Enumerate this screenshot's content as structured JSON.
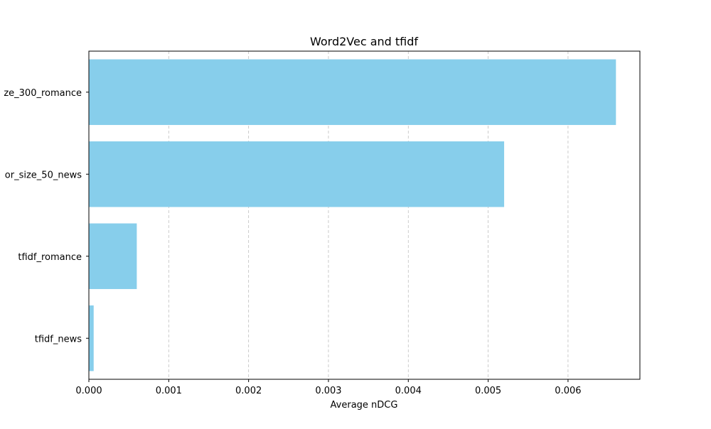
{
  "chart_data": {
    "type": "bar",
    "orientation": "horizontal",
    "title": "Word2Vec and tfidf",
    "xlabel": "Average nDCG",
    "ylabel": "",
    "categories": [
      "tfidf_news",
      "tfidf_romance",
      "or_size_50_news",
      "ze_300_romance"
    ],
    "values": [
      6e-05,
      0.0006,
      0.0052,
      0.0066
    ],
    "xlim": [
      0,
      0.0069
    ],
    "xticks": [
      0,
      0.001,
      0.002,
      0.003,
      0.004,
      0.005,
      0.006
    ],
    "xtick_labels": [
      "0.000",
      "0.001",
      "0.002",
      "0.003",
      "0.004",
      "0.005",
      "0.006"
    ],
    "bar_color": "#87ceeb",
    "grid": {
      "x": true,
      "y": false,
      "style": "dashed"
    },
    "legend": "none"
  }
}
